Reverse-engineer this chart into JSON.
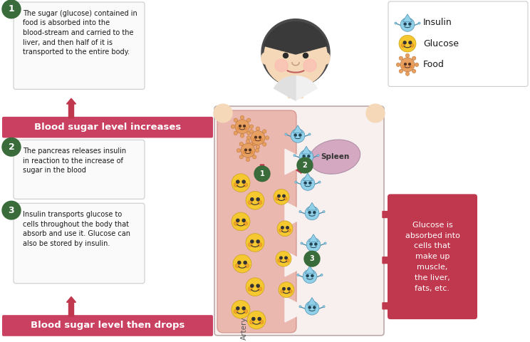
{
  "bg_color": "#ffffff",
  "step_circle_color": "#3a6b3a",
  "step1_text": "The sugar (glucose) contained in\nfood is absorbed into the\nblood-stream and carried to the\nliver, and then half of it is\ntransported to the entire body.",
  "step2_text": "The pancreas releases insulin\nin reaction to the increase of\nsugar in the blood",
  "step3_text": "Insulin transports glucose to\ncells throughout the body that\nabsorb and use it. Glucose can\nalso be stored by insulin.",
  "banner1_text": "Blood sugar level increases",
  "banner2_text": "Blood sugar level then drops",
  "banner_color": "#c94060",
  "banner_text_color": "#ffffff",
  "legend_items": [
    "Insulin",
    "Glucose",
    "Food"
  ],
  "spleen_label": "Spleen",
  "artery_label": "Artery",
  "right_box_text": "Glucose is\nabsorbed into\ncells that\nmake up\nmuscle,\nthe liver,\nfats, etc.",
  "right_box_color": "#c0384e",
  "right_box_text_color": "#ffffff",
  "artery_fill": "#f2d5d0",
  "artery_inner_fill": "#e8b8b0",
  "spleen_color": "#d4a8c0",
  "insulin_color": "#90d0e8",
  "glucose_color": "#f5c830",
  "food_color": "#e8a060",
  "arrow_color": "#c0384e",
  "step_box_border": "#cccccc",
  "step_box_bg": "#ffffff"
}
